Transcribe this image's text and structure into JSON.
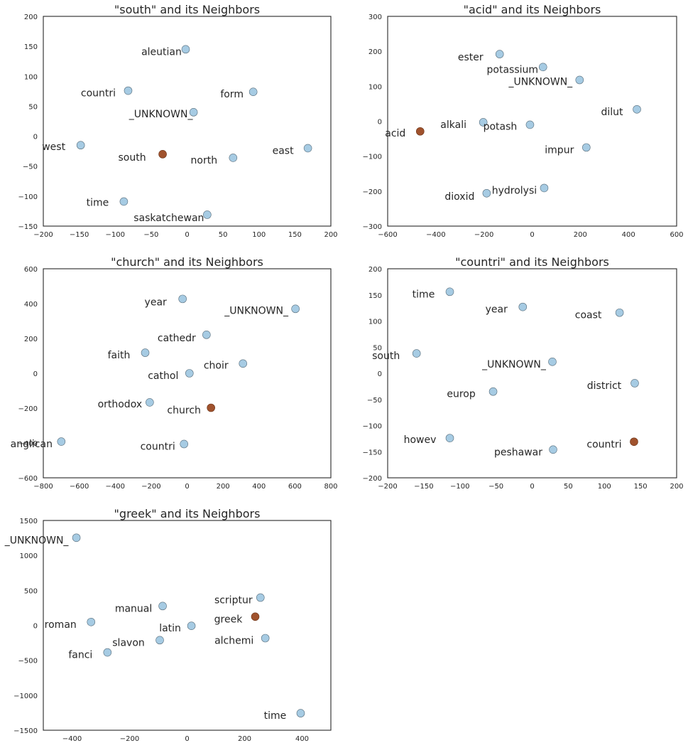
{
  "colors": {
    "neighbor_fill": "#a6cbe3",
    "neighbor_stroke": "#5a6f7d",
    "target_fill": "#a0522d",
    "target_stroke": "#6b3418",
    "axis": "#262626",
    "text": "#262626"
  },
  "chart_data": [
    {
      "type": "scatter",
      "title": "\"south\" and its Neighbors",
      "xlim": [
        -200,
        200
      ],
      "ylim": [
        -150,
        200
      ],
      "xticks": [
        -200,
        -150,
        -100,
        -50,
        0,
        50,
        100,
        150,
        200
      ],
      "yticks": [
        -150,
        -100,
        -50,
        0,
        50,
        100,
        150,
        200
      ],
      "points": [
        {
          "label": "aleutian",
          "x": -2,
          "y": 145,
          "target": false
        },
        {
          "label": "countri",
          "x": -82,
          "y": 76,
          "target": false
        },
        {
          "label": "form",
          "x": 92,
          "y": 74,
          "target": false
        },
        {
          "label": "_UNKNOWN_",
          "x": 9,
          "y": 40,
          "target": false
        },
        {
          "label": "west",
          "x": -148,
          "y": -15,
          "target": false
        },
        {
          "label": "south",
          "x": -34,
          "y": -30,
          "target": true
        },
        {
          "label": "north",
          "x": 64,
          "y": -36,
          "target": false
        },
        {
          "label": "east",
          "x": 168,
          "y": -20,
          "target": false
        },
        {
          "label": "time",
          "x": -88,
          "y": -109,
          "target": false
        },
        {
          "label": "saskatchewan",
          "x": 28,
          "y": -131,
          "target": false
        }
      ]
    },
    {
      "type": "scatter",
      "title": "\"acid\" and its Neighbors",
      "xlim": [
        -600,
        600
      ],
      "ylim": [
        -300,
        300
      ],
      "xticks": [
        -600,
        -400,
        -200,
        0,
        200,
        400,
        600
      ],
      "yticks": [
        -300,
        -200,
        -100,
        0,
        100,
        200,
        300
      ],
      "points": [
        {
          "label": "ester",
          "x": -135,
          "y": 192,
          "target": false
        },
        {
          "label": "potassium",
          "x": 45,
          "y": 155,
          "target": false
        },
        {
          "label": "_UNKNOWN_",
          "x": 197,
          "y": 118,
          "target": false
        },
        {
          "label": "dilut",
          "x": 435,
          "y": 34,
          "target": false
        },
        {
          "label": "acid",
          "x": -465,
          "y": -29,
          "target": true
        },
        {
          "label": "alkali",
          "x": -203,
          "y": -3,
          "target": false
        },
        {
          "label": "potash",
          "x": -9,
          "y": -10,
          "target": false
        },
        {
          "label": "impur",
          "x": 225,
          "y": -75,
          "target": false
        },
        {
          "label": "dioxid",
          "x": -189,
          "y": -206,
          "target": false
        },
        {
          "label": "hydrolysi",
          "x": 50,
          "y": -191,
          "target": false
        }
      ]
    },
    {
      "type": "scatter",
      "title": "\"church\" and its Neighbors",
      "xlim": [
        -800,
        800
      ],
      "ylim": [
        -600,
        600
      ],
      "xticks": [
        -800,
        -600,
        -400,
        -200,
        0,
        200,
        400,
        600,
        800
      ],
      "yticks": [
        -600,
        -400,
        -200,
        0,
        200,
        400,
        600
      ],
      "points": [
        {
          "label": "year",
          "x": -25,
          "y": 427,
          "target": false
        },
        {
          "label": "_UNKNOWN_",
          "x": 603,
          "y": 370,
          "target": false
        },
        {
          "label": "cathedr",
          "x": 108,
          "y": 221,
          "target": false
        },
        {
          "label": "faith",
          "x": -233,
          "y": 118,
          "target": false
        },
        {
          "label": "choir",
          "x": 311,
          "y": 56,
          "target": false
        },
        {
          "label": "cathol",
          "x": 13,
          "y": 0,
          "target": false
        },
        {
          "label": "orthodox",
          "x": -208,
          "y": -167,
          "target": false
        },
        {
          "label": "church",
          "x": 133,
          "y": -198,
          "target": true
        },
        {
          "label": "anglican",
          "x": -700,
          "y": -392,
          "target": false
        },
        {
          "label": "countri",
          "x": -17,
          "y": -406,
          "target": false
        }
      ]
    },
    {
      "type": "scatter",
      "title": "\"countri\" and its Neighbors",
      "xlim": [
        -200,
        200
      ],
      "ylim": [
        -200,
        200
      ],
      "xticks": [
        -200,
        -150,
        -100,
        -50,
        0,
        50,
        100,
        150,
        200
      ],
      "yticks": [
        -200,
        -150,
        -100,
        -50,
        0,
        50,
        100,
        150,
        200
      ],
      "points": [
        {
          "label": "time",
          "x": -114,
          "y": 156,
          "target": false
        },
        {
          "label": "year",
          "x": -13,
          "y": 127,
          "target": false
        },
        {
          "label": "coast",
          "x": 121,
          "y": 116,
          "target": false
        },
        {
          "label": "south",
          "x": -160,
          "y": 38,
          "target": false
        },
        {
          "label": "_UNKNOWN_",
          "x": 28,
          "y": 22,
          "target": false
        },
        {
          "label": "district",
          "x": 142,
          "y": -19,
          "target": false
        },
        {
          "label": "europ",
          "x": -54,
          "y": -35,
          "target": false
        },
        {
          "label": "howev",
          "x": -114,
          "y": -124,
          "target": false
        },
        {
          "label": "peshawar",
          "x": 29,
          "y": -146,
          "target": false
        },
        {
          "label": "countri",
          "x": 141,
          "y": -131,
          "target": true
        }
      ]
    },
    {
      "type": "scatter",
      "title": "\"greek\" and its Neighbors",
      "xlim": [
        -500,
        500
      ],
      "ylim": [
        -1500,
        1500
      ],
      "xticks": [
        -400,
        -200,
        0,
        200,
        400
      ],
      "yticks": [
        -1500,
        -1000,
        -500,
        0,
        500,
        1000,
        1500
      ],
      "points": [
        {
          "label": "_UNKNOWN_",
          "x": -385,
          "y": 1253,
          "target": false
        },
        {
          "label": "scriptur",
          "x": 255,
          "y": 397,
          "target": false
        },
        {
          "label": "manual",
          "x": -85,
          "y": 276,
          "target": false
        },
        {
          "label": "greek",
          "x": 237,
          "y": 124,
          "target": true
        },
        {
          "label": "roman",
          "x": -334,
          "y": 48,
          "target": false
        },
        {
          "label": "latin",
          "x": 15,
          "y": -7,
          "target": false
        },
        {
          "label": "alchemi",
          "x": 272,
          "y": -183,
          "target": false
        },
        {
          "label": "slavon",
          "x": -95,
          "y": -212,
          "target": false
        },
        {
          "label": "fanci",
          "x": -277,
          "y": -387,
          "target": false
        },
        {
          "label": "time",
          "x": 395,
          "y": -1257,
          "target": false
        }
      ]
    }
  ]
}
